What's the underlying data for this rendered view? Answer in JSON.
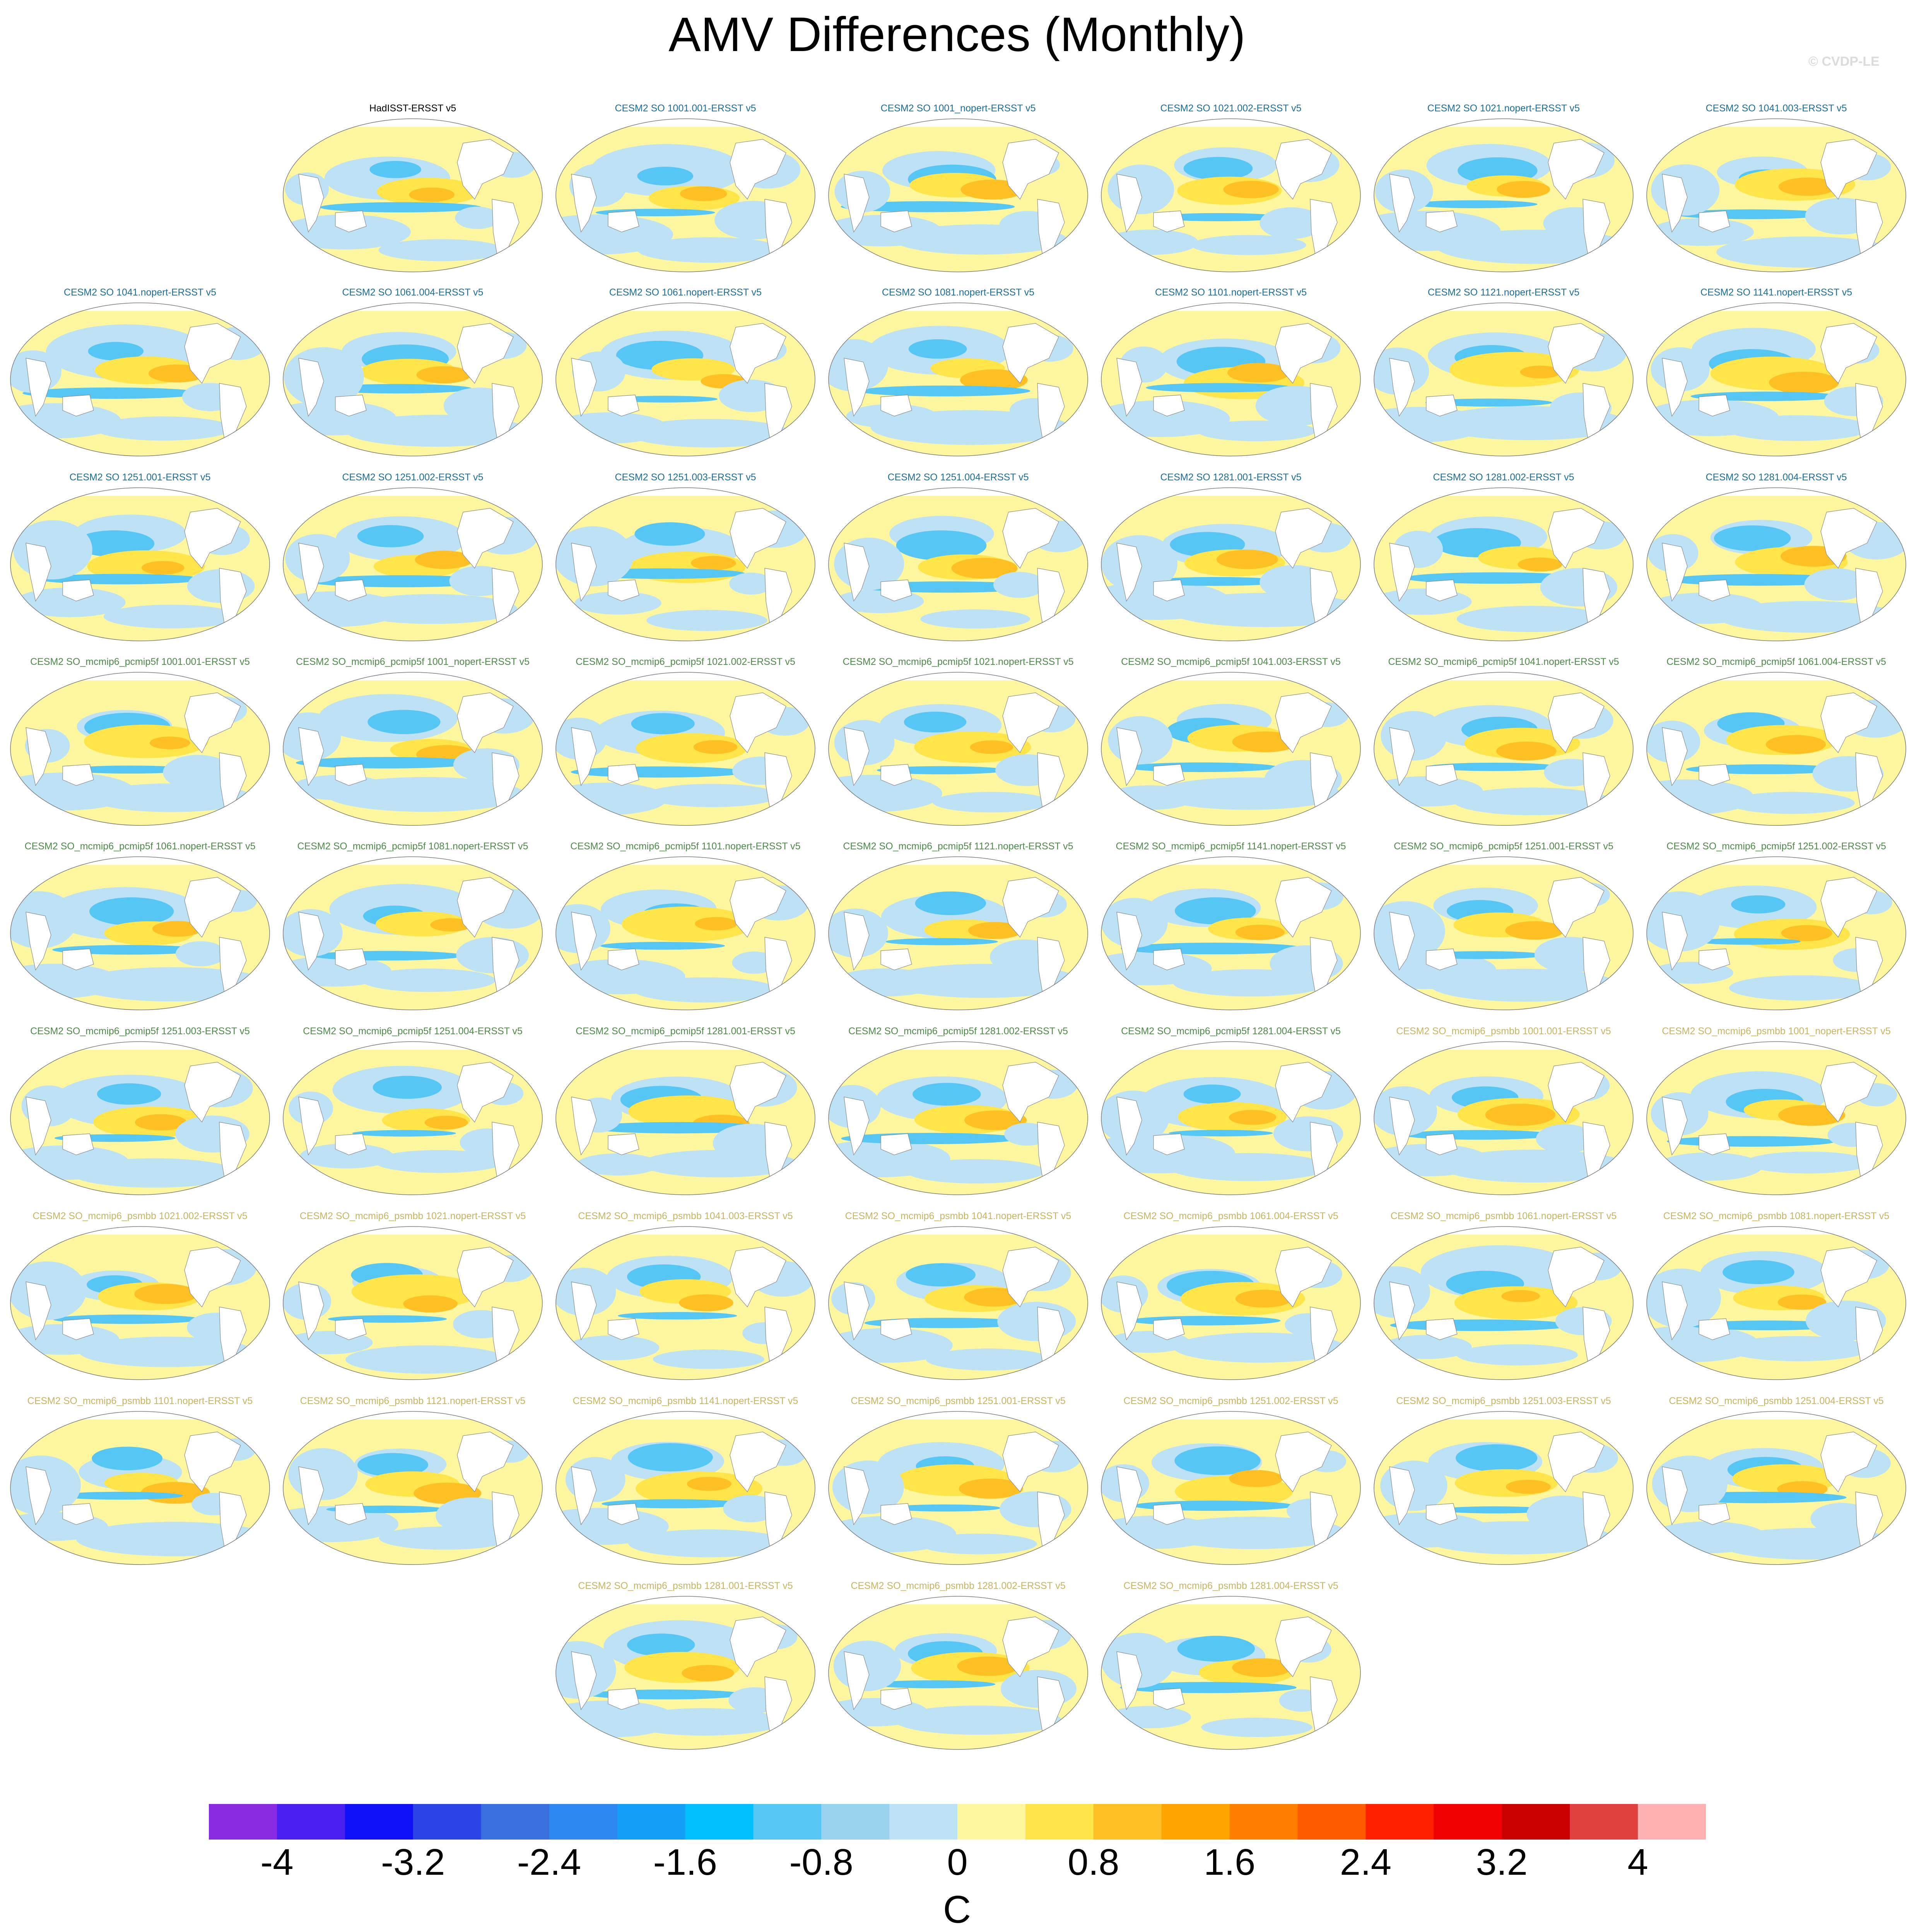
{
  "title": "AMV Differences (Monthly)",
  "watermark": "© CVDP-LE",
  "panels": [
    {
      "title": "HadISST-ERSST v5",
      "group": "obs"
    },
    {
      "title": "CESM2 SO 1001.001-ERSST v5",
      "group": "so"
    },
    {
      "title": "CESM2 SO 1001_nopert-ERSST v5",
      "group": "so"
    },
    {
      "title": "CESM2 SO 1021.002-ERSST v5",
      "group": "so"
    },
    {
      "title": "CESM2 SO 1021.nopert-ERSST v5",
      "group": "so"
    },
    {
      "title": "CESM2 SO 1041.003-ERSST v5",
      "group": "so"
    },
    {
      "title": "CESM2 SO 1041.nopert-ERSST v5",
      "group": "so"
    },
    {
      "title": "CESM2 SO 1061.004-ERSST v5",
      "group": "so"
    },
    {
      "title": "CESM2 SO 1061.nopert-ERSST v5",
      "group": "so"
    },
    {
      "title": "CESM2 SO 1081.nopert-ERSST v5",
      "group": "so"
    },
    {
      "title": "CESM2 SO 1101.nopert-ERSST v5",
      "group": "so"
    },
    {
      "title": "CESM2 SO 1121.nopert-ERSST v5",
      "group": "so"
    },
    {
      "title": "CESM2 SO 1141.nopert-ERSST v5",
      "group": "so"
    },
    {
      "title": "CESM2 SO 1251.001-ERSST v5",
      "group": "so"
    },
    {
      "title": "CESM2 SO 1251.002-ERSST v5",
      "group": "so"
    },
    {
      "title": "CESM2 SO 1251.003-ERSST v5",
      "group": "so"
    },
    {
      "title": "CESM2 SO 1251.004-ERSST v5",
      "group": "so"
    },
    {
      "title": "CESM2 SO 1281.001-ERSST v5",
      "group": "so"
    },
    {
      "title": "CESM2 SO 1281.002-ERSST v5",
      "group": "so"
    },
    {
      "title": "CESM2 SO 1281.004-ERSST v5",
      "group": "so"
    },
    {
      "title": "CESM2 SO_mcmip6_pcmip5f 1001.001-ERSST v5",
      "group": "pc"
    },
    {
      "title": "CESM2 SO_mcmip6_pcmip5f 1001_nopert-ERSST v5",
      "group": "pc"
    },
    {
      "title": "CESM2 SO_mcmip6_pcmip5f 1021.002-ERSST v5",
      "group": "pc"
    },
    {
      "title": "CESM2 SO_mcmip6_pcmip5f 1021.nopert-ERSST v5",
      "group": "pc"
    },
    {
      "title": "CESM2 SO_mcmip6_pcmip5f 1041.003-ERSST v5",
      "group": "pc"
    },
    {
      "title": "CESM2 SO_mcmip6_pcmip5f 1041.nopert-ERSST v5",
      "group": "pc"
    },
    {
      "title": "CESM2 SO_mcmip6_pcmip5f 1061.004-ERSST v5",
      "group": "pc"
    },
    {
      "title": "CESM2 SO_mcmip6_pcmip5f 1061.nopert-ERSST v5",
      "group": "pc"
    },
    {
      "title": "CESM2 SO_mcmip6_pcmip5f 1081.nopert-ERSST v5",
      "group": "pc"
    },
    {
      "title": "CESM2 SO_mcmip6_pcmip5f 1101.nopert-ERSST v5",
      "group": "pc"
    },
    {
      "title": "CESM2 SO_mcmip6_pcmip5f 1121.nopert-ERSST v5",
      "group": "pc"
    },
    {
      "title": "CESM2 SO_mcmip6_pcmip5f 1141.nopert-ERSST v5",
      "group": "pc"
    },
    {
      "title": "CESM2 SO_mcmip6_pcmip5f 1251.001-ERSST v5",
      "group": "pc"
    },
    {
      "title": "CESM2 SO_mcmip6_pcmip5f 1251.002-ERSST v5",
      "group": "pc"
    },
    {
      "title": "CESM2 SO_mcmip6_pcmip5f 1251.003-ERSST v5",
      "group": "pc"
    },
    {
      "title": "CESM2 SO_mcmip6_pcmip5f 1251.004-ERSST v5",
      "group": "pc"
    },
    {
      "title": "CESM2 SO_mcmip6_pcmip5f 1281.001-ERSST v5",
      "group": "pc"
    },
    {
      "title": "CESM2 SO_mcmip6_pcmip5f 1281.002-ERSST v5",
      "group": "pc"
    },
    {
      "title": "CESM2 SO_mcmip6_pcmip5f 1281.004-ERSST v5",
      "group": "pc"
    },
    {
      "title": "CESM2 SO_mcmip6_psmbb 1001.001-ERSST v5",
      "group": "ps"
    },
    {
      "title": "CESM2 SO_mcmip6_psmbb 1001_nopert-ERSST v5",
      "group": "ps"
    },
    {
      "title": "CESM2 SO_mcmip6_psmbb 1021.002-ERSST v5",
      "group": "ps"
    },
    {
      "title": "CESM2 SO_mcmip6_psmbb 1021.nopert-ERSST v5",
      "group": "ps"
    },
    {
      "title": "CESM2 SO_mcmip6_psmbb 1041.003-ERSST v5",
      "group": "ps"
    },
    {
      "title": "CESM2 SO_mcmip6_psmbb 1041.nopert-ERSST v5",
      "group": "ps"
    },
    {
      "title": "CESM2 SO_mcmip6_psmbb 1061.004-ERSST v5",
      "group": "ps"
    },
    {
      "title": "CESM2 SO_mcmip6_psmbb 1061.nopert-ERSST v5",
      "group": "ps"
    },
    {
      "title": "CESM2 SO_mcmip6_psmbb 1081.nopert-ERSST v5",
      "group": "ps"
    },
    {
      "title": "CESM2 SO_mcmip6_psmbb 1101.nopert-ERSST v5",
      "group": "ps"
    },
    {
      "title": "CESM2 SO_mcmip6_psmbb 1121.nopert-ERSST v5",
      "group": "ps"
    },
    {
      "title": "CESM2 SO_mcmip6_psmbb 1141.nopert-ERSST v5",
      "group": "ps"
    },
    {
      "title": "CESM2 SO_mcmip6_psmbb 1251.001-ERSST v5",
      "group": "ps"
    },
    {
      "title": "CESM2 SO_mcmip6_psmbb 1251.002-ERSST v5",
      "group": "ps"
    },
    {
      "title": "CESM2 SO_mcmip6_psmbb 1251.003-ERSST v5",
      "group": "ps"
    },
    {
      "title": "CESM2 SO_mcmip6_psmbb 1251.004-ERSST v5",
      "group": "ps"
    },
    {
      "title": "CESM2 SO_mcmip6_psmbb 1281.001-ERSST v5",
      "group": "ps"
    },
    {
      "title": "CESM2 SO_mcmip6_psmbb 1281.002-ERSST v5",
      "group": "ps"
    },
    {
      "title": "CESM2 SO_mcmip6_psmbb 1281.004-ERSST v5",
      "group": "ps"
    }
  ],
  "group_colors": {
    "obs": "#000000",
    "so": "#1b6f9a",
    "pc": "#4f8a4a",
    "ps": "#c8b560"
  },
  "colorbar": {
    "units": "C",
    "labels": [
      "-4",
      "-3.2",
      "-2.4",
      "-1.6",
      "-0.8",
      "0",
      "0.8",
      "1.6",
      "2.4",
      "3.2",
      "4"
    ],
    "colors": [
      "#8a2be2",
      "#4b1ef0",
      "#0f10f5",
      "#2a44e6",
      "#3a6fe0",
      "#2e86f0",
      "#139ef8",
      "#00bfff",
      "#56c6f5",
      "#9ad3ee",
      "#bde2f6",
      "#fff6a0",
      "#ffe44a",
      "#ffc023",
      "#ffa500",
      "#ff8000",
      "#ff5a00",
      "#ff2000",
      "#f00000",
      "#c80000",
      "#e04040",
      "#ffb0b0"
    ]
  }
}
